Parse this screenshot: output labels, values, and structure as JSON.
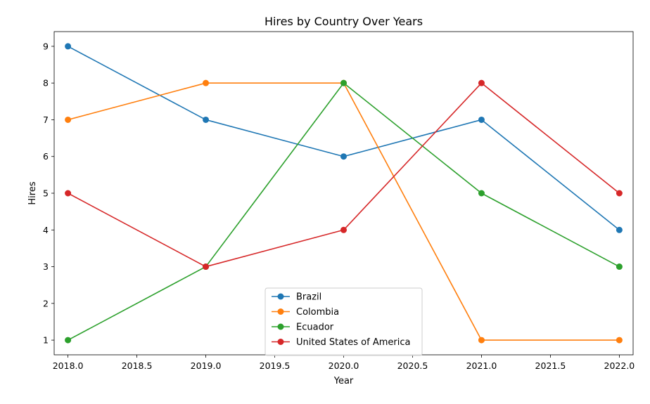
{
  "chart_data": {
    "type": "line",
    "title": "Hires by Country Over Years",
    "xlabel": "Year",
    "ylabel": "Hires",
    "x": [
      2018,
      2019,
      2020,
      2021,
      2022
    ],
    "xlim": [
      2017.9,
      2022.1
    ],
    "ylim": [
      0.6,
      9.4
    ],
    "xticks": [
      "2018.0",
      "2018.5",
      "2019.0",
      "2019.5",
      "2020.0",
      "2020.5",
      "2021.0",
      "2021.5",
      "2022.0"
    ],
    "xtick_values": [
      2018.0,
      2018.5,
      2019.0,
      2019.5,
      2020.0,
      2020.5,
      2021.0,
      2021.5,
      2022.0
    ],
    "yticks": [
      "1",
      "2",
      "3",
      "4",
      "5",
      "6",
      "7",
      "8",
      "9"
    ],
    "ytick_values": [
      1,
      2,
      3,
      4,
      5,
      6,
      7,
      8,
      9
    ],
    "grid": false,
    "legend_position": "lower-center",
    "series": [
      {
        "name": "Brazil",
        "color": "#1f77b4",
        "values": [
          9,
          7,
          6,
          7,
          4
        ]
      },
      {
        "name": "Colombia",
        "color": "#ff7f0e",
        "values": [
          7,
          8,
          8,
          1,
          1
        ]
      },
      {
        "name": "Ecuador",
        "color": "#2ca02c",
        "values": [
          1,
          3,
          8,
          5,
          3
        ]
      },
      {
        "name": "United States of America",
        "color": "#d62728",
        "values": [
          5,
          3,
          4,
          8,
          5
        ]
      }
    ]
  }
}
